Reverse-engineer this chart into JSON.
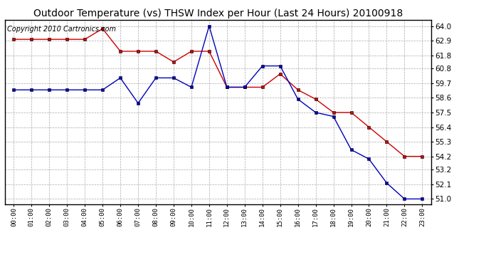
{
  "title": "Outdoor Temperature (vs) THSW Index per Hour (Last 24 Hours) 20100918",
  "copyright_text": "Copyright 2010 Cartronics.com",
  "hours": [
    "00:00",
    "01:00",
    "02:00",
    "03:00",
    "04:00",
    "05:00",
    "06:00",
    "07:00",
    "08:00",
    "09:00",
    "10:00",
    "11:00",
    "12:00",
    "13:00",
    "14:00",
    "15:00",
    "16:00",
    "17:00",
    "18:00",
    "19:00",
    "20:00",
    "21:00",
    "22:00",
    "23:00"
  ],
  "temp_red": [
    63.0,
    63.0,
    63.0,
    63.0,
    63.0,
    63.8,
    62.1,
    62.1,
    62.1,
    61.3,
    62.1,
    62.1,
    59.4,
    59.4,
    59.4,
    60.4,
    59.2,
    58.5,
    57.5,
    57.5,
    56.4,
    55.3,
    54.2,
    54.2
  ],
  "temp_blue": [
    59.2,
    59.2,
    59.2,
    59.2,
    59.2,
    59.2,
    60.1,
    58.2,
    60.1,
    60.1,
    59.4,
    64.0,
    59.4,
    59.4,
    61.0,
    61.0,
    58.5,
    57.5,
    57.2,
    54.7,
    54.0,
    52.2,
    51.0,
    51.0
  ],
  "ylim_min": 50.6,
  "ylim_max": 64.45,
  "yticks": [
    51.0,
    52.1,
    53.2,
    54.2,
    55.3,
    56.4,
    57.5,
    58.6,
    59.7,
    60.8,
    61.8,
    62.9,
    64.0
  ],
  "red_color": "#cc0000",
  "blue_color": "#0000bb",
  "bg_color": "#ffffff",
  "grid_color": "#aaaaaa",
  "title_fontsize": 10,
  "copyright_fontsize": 7
}
